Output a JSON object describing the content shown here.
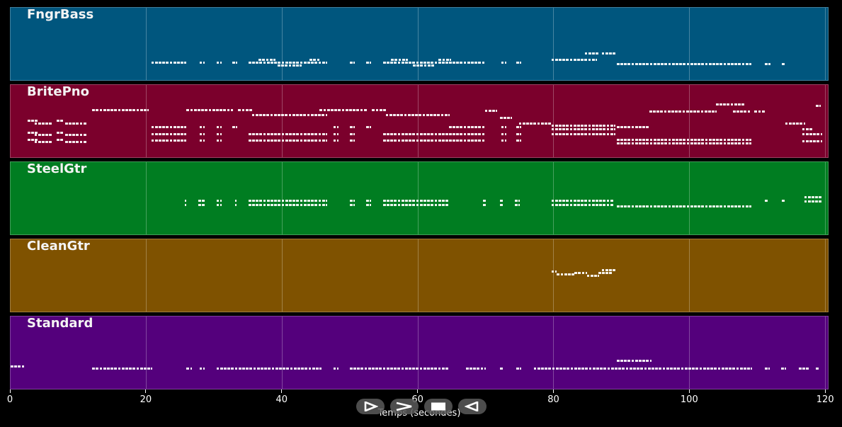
{
  "chart_data": {
    "type": "piano-roll",
    "title": "",
    "xlabel": "Temps (secondes)",
    "ylabel": "",
    "xlim": [
      0,
      120.5
    ],
    "xticks": [
      0,
      20,
      40,
      60,
      80,
      100,
      120
    ],
    "xtick_labels": [
      "0",
      "20",
      "40",
      "60",
      "80",
      "100",
      "120"
    ],
    "grid": true,
    "grid_axis": "x",
    "background": "#000000",
    "tracks": [
      {
        "name": "FngrBass",
        "color": "#00567e",
        "note_rows": [
          {
            "y_frac": 0.74,
            "segments": [
              [
                20.7,
                25.8
              ],
              [
                27.8,
                28.6
              ],
              [
                30.3,
                31.0
              ],
              [
                32.6,
                33.2
              ],
              [
                35.0,
                46.5
              ],
              [
                49.9,
                50.6
              ],
              [
                52.3,
                53.1
              ],
              [
                54.8,
                64.5
              ],
              [
                64.5,
                69.8
              ],
              [
                72.2,
                72.8
              ],
              [
                74.4,
                75.2
              ]
            ]
          },
          {
            "y_frac": 0.7,
            "segments": [
              [
                36.5,
                39.0
              ],
              [
                44.0,
                45.5
              ],
              [
                56.0,
                58.5
              ],
              [
                63.0,
                64.8
              ]
            ]
          },
          {
            "y_frac": 0.78,
            "segments": [
              [
                39.3,
                42.8
              ],
              [
                59.2,
                62.3
              ]
            ]
          },
          {
            "y_frac": 0.7,
            "segments": [
              [
                79.6,
                86.2
              ]
            ]
          },
          {
            "y_frac": 0.62,
            "segments": [
              [
                84.5,
                86.5
              ],
              [
                87.0,
                89.0
              ]
            ]
          },
          {
            "y_frac": 0.76,
            "segments": [
              [
                89.2,
                109.0
              ],
              [
                111.0,
                111.8
              ],
              [
                113.5,
                114.0
              ]
            ]
          }
        ]
      },
      {
        "name": "BritePno",
        "color": "#7b002c",
        "note_rows": [
          {
            "y_frac": 0.48,
            "segments": [
              [
                2.5,
                4.0
              ],
              [
                6.8,
                7.8
              ]
            ]
          },
          {
            "y_frac": 0.52,
            "segments": [
              [
                3.5,
                6.0
              ],
              [
                8.0,
                11.2
              ]
            ]
          },
          {
            "y_frac": 0.64,
            "segments": [
              [
                2.5,
                4.0
              ],
              [
                6.8,
                7.8
              ]
            ]
          },
          {
            "y_frac": 0.67,
            "segments": [
              [
                3.5,
                6.0
              ],
              [
                8.0,
                11.2
              ]
            ]
          },
          {
            "y_frac": 0.74,
            "segments": [
              [
                2.5,
                4.0
              ],
              [
                6.8,
                7.8
              ]
            ]
          },
          {
            "y_frac": 0.77,
            "segments": [
              [
                3.5,
                6.0
              ],
              [
                8.0,
                11.2
              ]
            ]
          },
          {
            "y_frac": 0.34,
            "segments": [
              [
                12.0,
                20.2
              ],
              [
                25.9,
                32.7
              ],
              [
                33.5,
                35.5
              ],
              [
                45.5,
                52.5
              ],
              [
                53.2,
                55.2
              ]
            ]
          },
          {
            "y_frac": 0.4,
            "segments": [
              [
                35.5,
                46.5
              ],
              [
                55.2,
                64.5
              ]
            ]
          },
          {
            "y_frac": 0.57,
            "segments": [
              [
                20.7,
                25.8
              ],
              [
                27.8,
                28.6
              ],
              [
                30.3,
                31.0
              ],
              [
                32.6,
                33.2
              ],
              [
                47.5,
                48.2
              ],
              [
                49.9,
                50.6
              ],
              [
                52.3,
                53.1
              ],
              [
                64.5,
                69.8
              ],
              [
                72.2,
                72.8
              ],
              [
                74.4,
                75.2
              ]
            ]
          },
          {
            "y_frac": 0.66,
            "segments": [
              [
                20.7,
                25.8
              ],
              [
                27.8,
                28.6
              ],
              [
                30.3,
                31.0
              ],
              [
                35.0,
                46.5
              ],
              [
                47.5,
                48.2
              ],
              [
                49.9,
                50.6
              ],
              [
                54.8,
                64.5
              ],
              [
                64.5,
                69.8
              ],
              [
                72.2,
                72.8
              ],
              [
                74.4,
                75.2
              ]
            ]
          },
          {
            "y_frac": 0.75,
            "segments": [
              [
                20.7,
                25.8
              ],
              [
                27.8,
                28.6
              ],
              [
                30.3,
                31.0
              ],
              [
                35.0,
                46.5
              ],
              [
                47.5,
                48.2
              ],
              [
                49.9,
                50.6
              ],
              [
                54.8,
                64.5
              ],
              [
                64.5,
                69.8
              ],
              [
                72.2,
                72.8
              ],
              [
                74.4,
                75.2
              ]
            ]
          },
          {
            "y_frac": 0.35,
            "segments": [
              [
                69.8,
                71.5
              ]
            ]
          },
          {
            "y_frac": 0.44,
            "segments": [
              [
                72.0,
                73.8
              ]
            ]
          },
          {
            "y_frac": 0.52,
            "segments": [
              [
                74.8,
                79.6
              ]
            ]
          },
          {
            "y_frac": 0.55,
            "segments": [
              [
                79.6,
                89.0
              ]
            ]
          },
          {
            "y_frac": 0.6,
            "segments": [
              [
                79.6,
                89.0
              ]
            ]
          },
          {
            "y_frac": 0.66,
            "segments": [
              [
                79.6,
                89.0
              ]
            ]
          },
          {
            "y_frac": 0.36,
            "segments": [
              [
                94.0,
                103.8
              ],
              [
                106.3,
                109.0
              ],
              [
                109.5,
                111.0
              ]
            ]
          },
          {
            "y_frac": 0.26,
            "segments": [
              [
                103.8,
                108.0
              ]
            ]
          },
          {
            "y_frac": 0.57,
            "segments": [
              [
                89.2,
                94.0
              ]
            ]
          },
          {
            "y_frac": 0.74,
            "segments": [
              [
                89.2,
                109.0
              ]
            ]
          },
          {
            "y_frac": 0.79,
            "segments": [
              [
                89.2,
                109.0
              ]
            ]
          },
          {
            "y_frac": 0.52,
            "segments": [
              [
                114.0,
                117.0
              ]
            ]
          },
          {
            "y_frac": 0.6,
            "segments": [
              [
                116.5,
                118.0
              ]
            ]
          },
          {
            "y_frac": 0.66,
            "segments": [
              [
                116.5,
                119.5
              ]
            ]
          },
          {
            "y_frac": 0.76,
            "segments": [
              [
                116.5,
                119.5
              ]
            ]
          },
          {
            "y_frac": 0.28,
            "segments": [
              [
                118.5,
                119.2
              ]
            ]
          }
        ]
      },
      {
        "name": "SteelGtr",
        "color": "#007d21",
        "note_rows": [
          {
            "y_frac": 0.52,
            "segments": [
              [
                25.6,
                25.9
              ],
              [
                27.6,
                28.6
              ],
              [
                30.3,
                31.1
              ],
              [
                33.0,
                33.3
              ],
              [
                35.0,
                46.5
              ],
              [
                49.9,
                50.6
              ],
              [
                52.3,
                53.1
              ],
              [
                54.8,
                64.5
              ],
              [
                69.5,
                70.0
              ],
              [
                72.0,
                72.5
              ],
              [
                74.2,
                75.0
              ]
            ]
          },
          {
            "y_frac": 0.58,
            "segments": [
              [
                25.6,
                25.9
              ],
              [
                27.6,
                28.6
              ],
              [
                30.3,
                31.1
              ],
              [
                33.0,
                33.3
              ],
              [
                35.0,
                46.5
              ],
              [
                49.9,
                50.6
              ],
              [
                52.3,
                53.1
              ],
              [
                54.8,
                64.5
              ],
              [
                69.5,
                70.0
              ],
              [
                72.0,
                72.5
              ],
              [
                74.2,
                75.0
              ]
            ]
          },
          {
            "y_frac": 0.52,
            "segments": [
              [
                79.6,
                88.8
              ]
            ]
          },
          {
            "y_frac": 0.58,
            "segments": [
              [
                79.6,
                88.8
              ]
            ]
          },
          {
            "y_frac": 0.6,
            "segments": [
              [
                89.2,
                109.0
              ]
            ]
          },
          {
            "y_frac": 0.52,
            "segments": [
              [
                111.0,
                111.5
              ],
              [
                113.5,
                114.0
              ]
            ]
          },
          {
            "y_frac": 0.47,
            "segments": [
              [
                116.8,
                119.5
              ]
            ]
          },
          {
            "y_frac": 0.53,
            "segments": [
              [
                116.8,
                119.5
              ]
            ]
          }
        ]
      },
      {
        "name": "CleanGtr",
        "color": "#7f5200",
        "note_rows": [
          {
            "y_frac": 0.43,
            "segments": [
              [
                79.6,
                80.4
              ]
            ]
          },
          {
            "y_frac": 0.47,
            "segments": [
              [
                80.4,
                83.0
              ]
            ]
          },
          {
            "y_frac": 0.45,
            "segments": [
              [
                83.0,
                84.8
              ]
            ]
          },
          {
            "y_frac": 0.49,
            "segments": [
              [
                84.8,
                86.5
              ]
            ]
          },
          {
            "y_frac": 0.45,
            "segments": [
              [
                86.5,
                88.5
              ]
            ]
          },
          {
            "y_frac": 0.41,
            "segments": [
              [
                87.0,
                89.0
              ]
            ]
          }
        ]
      },
      {
        "name": "Standard",
        "color": "#54007c",
        "note_rows": [
          {
            "y_frac": 0.67,
            "segments": [
              [
                0.0,
                2.0
              ]
            ]
          },
          {
            "y_frac": 0.7,
            "segments": [
              [
                12.0,
                20.7
              ],
              [
                25.9,
                26.5
              ],
              [
                27.8,
                28.6
              ],
              [
                30.3,
                45.8
              ],
              [
                47.5,
                48.2
              ],
              [
                49.9,
                64.5
              ],
              [
                67.0,
                69.8
              ],
              [
                72.0,
                72.5
              ],
              [
                74.4,
                75.2
              ],
              [
                77.0,
                109.0
              ],
              [
                111.0,
                111.6
              ],
              [
                113.4,
                114.0
              ],
              [
                116.0,
                117.5
              ],
              [
                118.5,
                119.0
              ]
            ]
          },
          {
            "y_frac": 0.6,
            "segments": [
              [
                89.2,
                94.2
              ]
            ]
          }
        ]
      }
    ]
  },
  "axis": {
    "xlabel": "Temps (secondes)",
    "ticks": [
      {
        "value": 0,
        "label": "0"
      },
      {
        "value": 20,
        "label": "20"
      },
      {
        "value": 40,
        "label": "40"
      },
      {
        "value": 60,
        "label": "60"
      },
      {
        "value": 80,
        "label": "80"
      },
      {
        "value": 100,
        "label": "100"
      },
      {
        "value": 120,
        "label": "120"
      }
    ]
  },
  "controls": [
    {
      "name": "play-button",
      "icon": "play-icon"
    },
    {
      "name": "next-button",
      "icon": "chevron-right-icon"
    },
    {
      "name": "stop-button",
      "icon": "stop-icon"
    },
    {
      "name": "back-button",
      "icon": "play-reverse-icon"
    }
  ]
}
